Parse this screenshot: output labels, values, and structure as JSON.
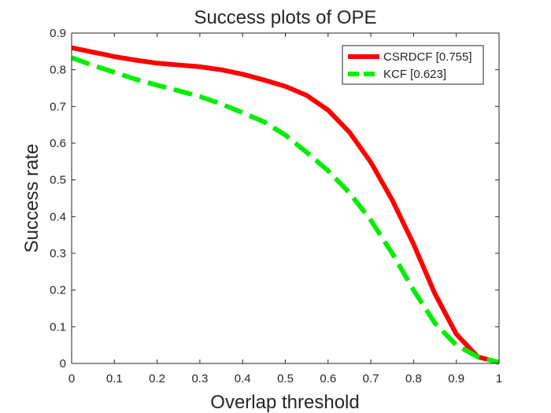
{
  "chart_data": {
    "type": "line",
    "title": "Success plots of OPE",
    "xlabel": "Overlap threshold",
    "ylabel": "Success rate",
    "xlim": [
      0,
      1
    ],
    "ylim": [
      0,
      0.9
    ],
    "xticks": [
      0,
      0.1,
      0.2,
      0.3,
      0.4,
      0.5,
      0.6,
      0.7,
      0.8,
      0.9,
      1
    ],
    "xtick_labels": [
      "0",
      "0.1",
      "0.2",
      "0.3",
      "0.4",
      "0.5",
      "0.6",
      "0.7",
      "0.8",
      "0.9",
      "1"
    ],
    "yticks": [
      0,
      0.1,
      0.2,
      0.3,
      0.4,
      0.5,
      0.6,
      0.7,
      0.8,
      0.9
    ],
    "ytick_labels": [
      "0",
      "0.1",
      "0.2",
      "0.3",
      "0.4",
      "0.5",
      "0.6",
      "0.7",
      "0.8",
      "0.9"
    ],
    "grid": false,
    "legend_position": "top-right",
    "series": [
      {
        "name": "CSRDCF [0.755]",
        "color": "#ff0000",
        "line_style": "solid",
        "x": [
          0,
          0.05,
          0.1,
          0.15,
          0.2,
          0.25,
          0.3,
          0.35,
          0.4,
          0.45,
          0.5,
          0.55,
          0.6,
          0.65,
          0.7,
          0.75,
          0.8,
          0.85,
          0.9,
          0.95,
          1
        ],
        "y": [
          0.86,
          0.848,
          0.836,
          0.826,
          0.818,
          0.813,
          0.808,
          0.8,
          0.788,
          0.772,
          0.755,
          0.73,
          0.69,
          0.63,
          0.548,
          0.445,
          0.325,
          0.19,
          0.08,
          0.018,
          0.003
        ]
      },
      {
        "name": "KCF [0.623]",
        "color": "#00ee00",
        "line_style": "dashed",
        "x": [
          0,
          0.05,
          0.1,
          0.15,
          0.2,
          0.25,
          0.3,
          0.35,
          0.4,
          0.45,
          0.5,
          0.55,
          0.6,
          0.65,
          0.7,
          0.75,
          0.8,
          0.85,
          0.9,
          0.95,
          1
        ],
        "y": [
          0.833,
          0.812,
          0.793,
          0.774,
          0.758,
          0.743,
          0.727,
          0.707,
          0.683,
          0.658,
          0.622,
          0.575,
          0.525,
          0.465,
          0.39,
          0.3,
          0.2,
          0.11,
          0.05,
          0.018,
          0.003
        ]
      }
    ]
  }
}
